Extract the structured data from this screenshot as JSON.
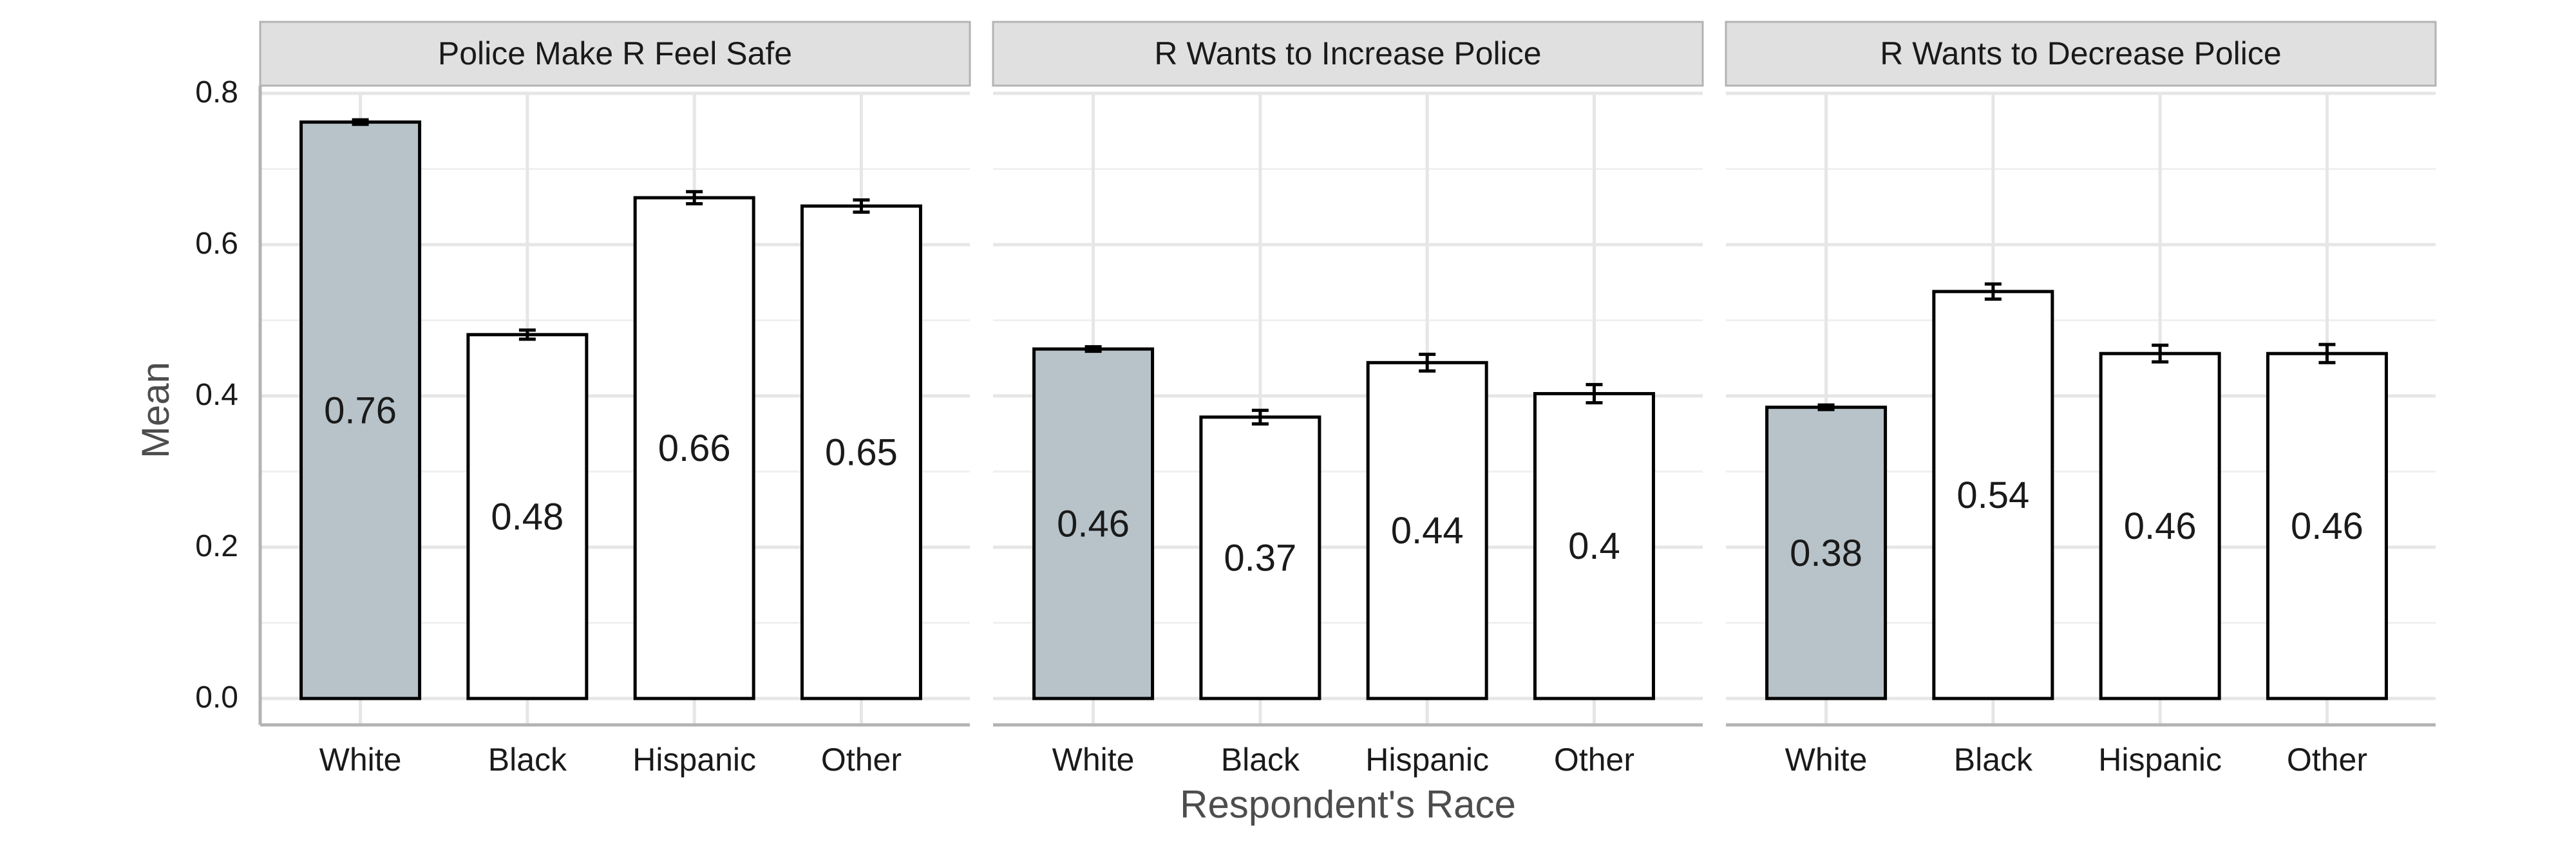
{
  "chart_data": {
    "type": "bar",
    "ylabel": "Mean",
    "xlabel": "Respondent's Race",
    "ylim": [
      0,
      0.8
    ],
    "yticks": [
      "0.0",
      "0.2",
      "0.4",
      "0.6",
      "0.8"
    ],
    "categories": [
      "White",
      "Black",
      "Hispanic",
      "Other"
    ],
    "grid": true,
    "legend": "none",
    "colors": {
      "highlight_fill": "#b8c3c9",
      "bar_fill": "#ffffff",
      "bar_stroke": "#000000",
      "strip_fill": "#e0e0e0",
      "grid": "#e6e6e6"
    },
    "panels": [
      {
        "title": "Police Make R Feel Safe",
        "values": [
          0.762,
          0.481,
          0.662,
          0.651
        ],
        "labels": [
          "0.76",
          "0.48",
          "0.66",
          "0.65"
        ],
        "error": [
          0.003,
          0.006,
          0.008,
          0.008
        ]
      },
      {
        "title": "R Wants to Increase Police",
        "values": [
          0.462,
          0.372,
          0.444,
          0.403
        ],
        "labels": [
          "0.46",
          "0.37",
          "0.44",
          "0.4"
        ],
        "error": [
          0.003,
          0.009,
          0.011,
          0.012
        ]
      },
      {
        "title": "R Wants to Decrease Police",
        "values": [
          0.385,
          0.538,
          0.456,
          0.456
        ],
        "labels": [
          "0.38",
          "0.54",
          "0.46",
          "0.46"
        ],
        "error": [
          0.003,
          0.01,
          0.011,
          0.012
        ]
      }
    ]
  }
}
